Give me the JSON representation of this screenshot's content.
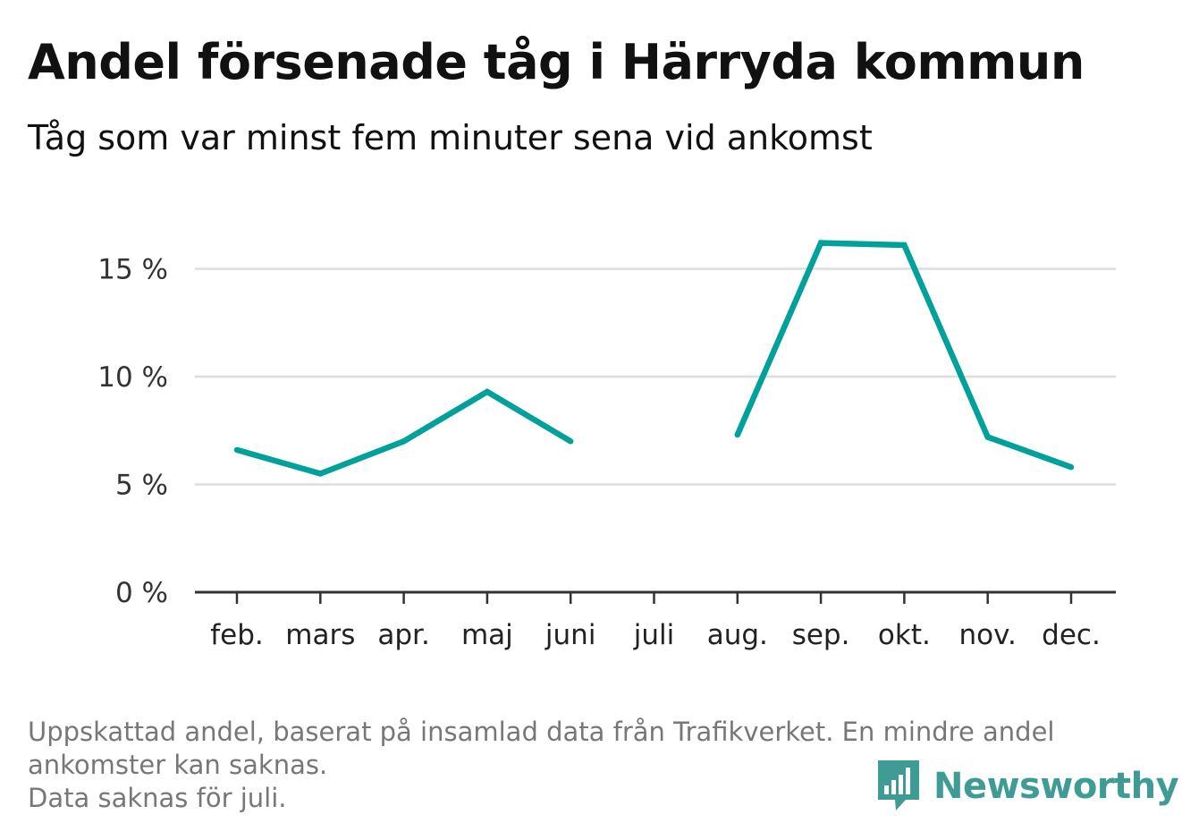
{
  "title": "Andel försenade tåg i Härryda kommun",
  "subtitle": "Tåg som var minst fem minuter sena vid ankomst",
  "footnote": {
    "line1": "Uppskattad andel, baserat på insamlad data från Trafikverket. En mindre andel",
    "line2": "ankomster kan saknas.",
    "line3": "Data saknas för juli."
  },
  "logo": {
    "text": "Newsworthy",
    "icon": "bar-chart-speech-icon",
    "color": "#3f9c95"
  },
  "chart_data": {
    "type": "line",
    "categories": [
      "feb.",
      "mars",
      "apr.",
      "maj",
      "juni",
      "juli",
      "aug.",
      "sep.",
      "okt.",
      "nov.",
      "dec."
    ],
    "series": [
      {
        "values": [
          6.6,
          5.5,
          7.0,
          9.3,
          7.0,
          null,
          7.3,
          16.2,
          16.1,
          7.2,
          5.8
        ],
        "color": "#00a19a"
      }
    ],
    "y_ticks": [
      0,
      5,
      10,
      15
    ],
    "y_tick_labels": [
      "0 %",
      "5 %",
      "10 %",
      "15 %"
    ],
    "ylim": [
      0,
      17.5
    ],
    "grid": true,
    "legend": "none"
  }
}
